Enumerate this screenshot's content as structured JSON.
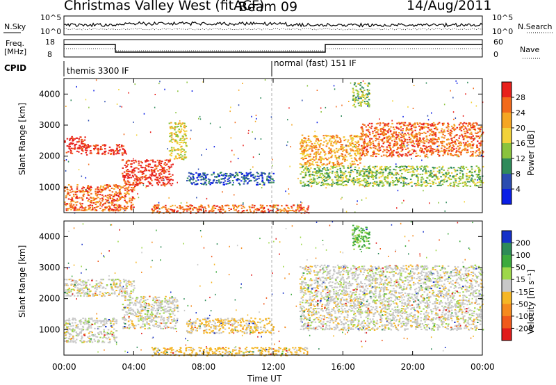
{
  "header": {
    "title": "Christmas Valley West (fitACF)",
    "beam": "Beam 09",
    "date": "14/Aug/2011"
  },
  "nsky_panel": {
    "left_label": "N.Sky",
    "left_ticks": [
      "10^5",
      "10^0"
    ],
    "right_ticks": [
      "10^5",
      "10^0"
    ],
    "right_label": "N.Search"
  },
  "freq_panel": {
    "left_label_1": "Freq.",
    "left_label_2": "[MHz]",
    "left_ticks": [
      "18",
      "8"
    ],
    "right_ticks": [
      "60",
      "0"
    ],
    "right_label": "Nave"
  },
  "cpid_panel": {
    "label": "CPID",
    "modes": [
      "themis 3300 IF",
      "normal (fast) 151 IF"
    ]
  },
  "x_axis": {
    "label": "Time UT",
    "ticks": [
      "00:00",
      "04:00",
      "08:00",
      "12:00",
      "16:00",
      "20:00",
      "00:00"
    ]
  },
  "chart_data": [
    {
      "type": "heatmap",
      "xlabel": "Time UT",
      "ylabel": "Slant Range [km]",
      "y_ticks": [
        "1000",
        "2000",
        "3000",
        "4000"
      ],
      "ylim": [
        180,
        4500
      ],
      "xlim_hours": [
        0,
        24
      ],
      "colorbar": {
        "label": "Power [dB]",
        "ticks": [
          "4",
          "8",
          "12",
          "16",
          "20",
          "24",
          "28"
        ],
        "colors": [
          "#0a1ee6",
          "#2b4cb0",
          "#2f8a5a",
          "#8ac33d",
          "#f2d23a",
          "#f5a623",
          "#f26a1b",
          "#e8201b"
        ]
      },
      "regions": [
        {
          "t": [
            0.0,
            1.2
          ],
          "r": [
            2100,
            2650
          ],
          "level": 7
        },
        {
          "t": [
            1.2,
            3.5
          ],
          "r": [
            2050,
            2400
          ],
          "level": 7
        },
        {
          "t": [
            3.3,
            6.2
          ],
          "r": [
            1050,
            1900
          ],
          "level": 7
        },
        {
          "t": [
            6.0,
            7.0
          ],
          "r": [
            1900,
            3100
          ],
          "level": 4
        },
        {
          "t": [
            0.0,
            4.0
          ],
          "r": [
            250,
            1100
          ],
          "level": 6
        },
        {
          "t": [
            7.0,
            12.0
          ],
          "r": [
            1100,
            1500
          ],
          "level": 1
        },
        {
          "t": [
            5.0,
            14.0
          ],
          "r": [
            180,
            450
          ],
          "level": 6
        },
        {
          "t": [
            13.5,
            17.0
          ],
          "r": [
            1700,
            2700
          ],
          "level": 5
        },
        {
          "t": [
            13.5,
            24.0
          ],
          "r": [
            1050,
            1700
          ],
          "level": 3
        },
        {
          "t": [
            17.0,
            24.0
          ],
          "r": [
            2000,
            3100
          ],
          "level": 6
        },
        {
          "t": [
            16.5,
            17.5
          ],
          "r": [
            3600,
            4400
          ],
          "level": 3
        }
      ]
    },
    {
      "type": "heatmap",
      "xlabel": "Time UT",
      "ylabel": "Slant Range [km]",
      "y_ticks": [
        "1000",
        "2000",
        "3000",
        "4000"
      ],
      "ylim": [
        180,
        4500
      ],
      "xlim_hours": [
        0,
        24
      ],
      "colorbar": {
        "label": "Velocity [m s⁻¹]",
        "ticks": [
          "200",
          "100",
          "50",
          "15",
          "-15",
          "-50",
          "-100",
          "-200"
        ],
        "colors": [
          "#1530c8",
          "#2e8b57",
          "#3daa3d",
          "#9ed84a",
          "#c8c8c8",
          "#f5b625",
          "#f58a1e",
          "#f0591b",
          "#e01c1b"
        ]
      },
      "regions": [
        {
          "t": [
            0.0,
            4.0
          ],
          "r": [
            2100,
            2650
          ],
          "v": 0
        },
        {
          "t": [
            3.3,
            6.5
          ],
          "r": [
            1050,
            2100
          ],
          "v": 0
        },
        {
          "t": [
            0.0,
            3.0
          ],
          "r": [
            600,
            1400
          ],
          "v": 0
        },
        {
          "t": [
            7.0,
            12.0
          ],
          "r": [
            900,
            1400
          ],
          "v": -20
        },
        {
          "t": [
            5.0,
            14.0
          ],
          "r": [
            180,
            450
          ],
          "v": -30
        },
        {
          "t": [
            13.5,
            24.0
          ],
          "r": [
            1000,
            3100
          ],
          "v": 0
        },
        {
          "t": [
            16.5,
            17.5
          ],
          "r": [
            3600,
            4400
          ],
          "v": 60
        }
      ]
    }
  ]
}
